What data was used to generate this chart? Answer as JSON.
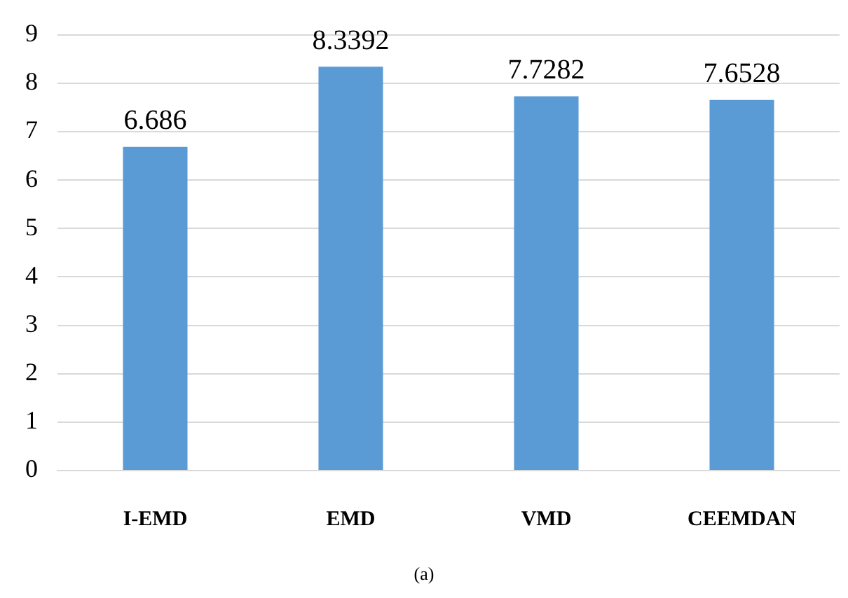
{
  "chart_data": {
    "type": "bar",
    "categories": [
      "I-EMD",
      "EMD",
      "VMD",
      "CEEMDAN"
    ],
    "values": [
      6.686,
      8.3392,
      7.7282,
      7.6528
    ],
    "color": "#5b9bd5",
    "ylim": [
      0,
      9
    ],
    "yticks": [
      0,
      1,
      2,
      3,
      4,
      5,
      6,
      7,
      8,
      9
    ],
    "grid": "y",
    "data_labels": true,
    "annotations": [
      "(a)"
    ]
  }
}
